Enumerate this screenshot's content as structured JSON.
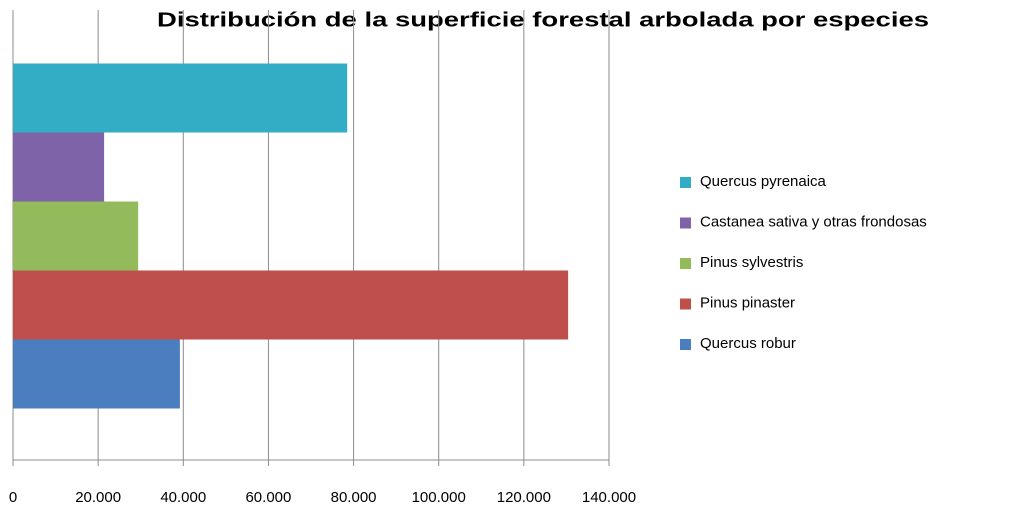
{
  "chart_data": {
    "type": "barh",
    "title": "Distribución de la superficie forestal arbolada por especies",
    "series": [
      {
        "name": "Quercus robur",
        "color": "#4a7ebf",
        "values": [
          39200
        ]
      },
      {
        "name": "Pinus pinaster",
        "color": "#be4f4c",
        "values": [
          130400
        ]
      },
      {
        "name": "Pinus sylvestris",
        "color": "#93bb5b",
        "values": [
          29400
        ]
      },
      {
        "name": "Castanea sativa y otras frondosas",
        "color": "#7e63a8",
        "values": [
          21400
        ]
      },
      {
        "name": "Quercus pyrenaica",
        "color": "#33adc5",
        "values": [
          78500
        ]
      }
    ],
    "xlim": [
      0,
      140000
    ],
    "xticks": [
      0,
      {
        "value": 20000,
        "label": "20.000"
      },
      {
        "value": 40000,
        "label": "40.000"
      },
      {
        "value": 60000,
        "label": "60.000"
      },
      {
        "value": 80000,
        "label": "80.000"
      },
      {
        "value": 100000,
        "label": "100.000"
      },
      {
        "value": 120000,
        "label": "120.000"
      },
      {
        "value": 140000,
        "label": "140.000"
      }
    ],
    "grid": true,
    "legend": "right"
  }
}
